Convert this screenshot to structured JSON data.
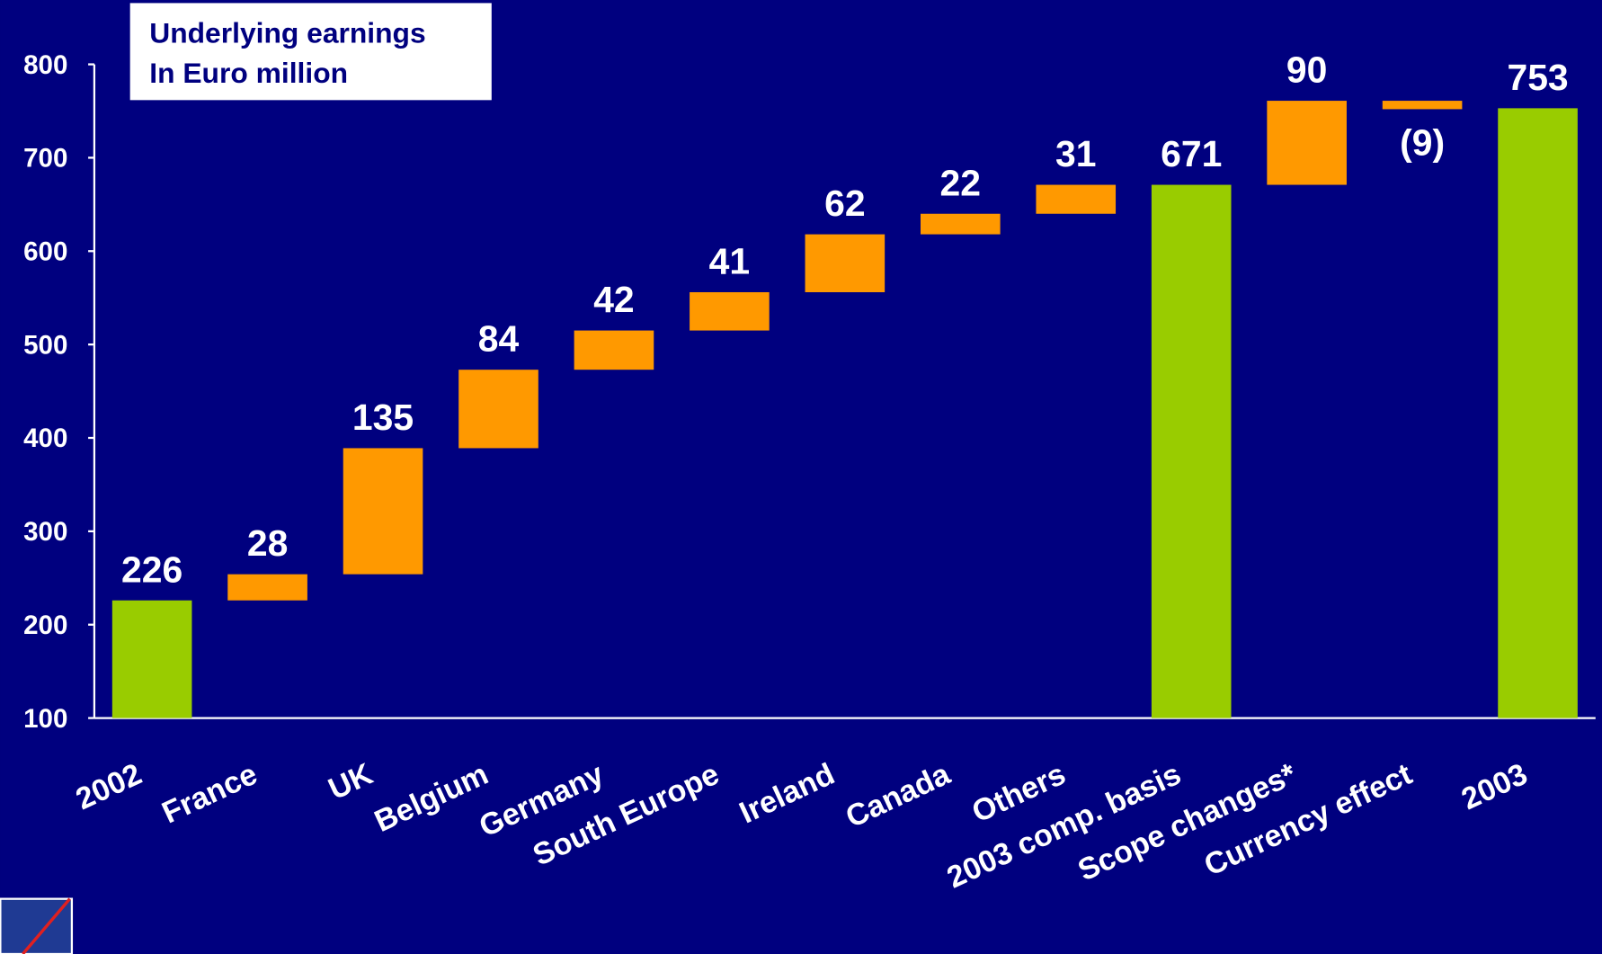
{
  "chart_data": {
    "type": "waterfall",
    "title": "Underlying earnings",
    "subtitle": "In Euro million",
    "categories": [
      "2002",
      "France",
      "UK",
      "Belgium",
      "Germany",
      "South Europe",
      "Ireland",
      "Canada",
      "Others",
      "2003 comp. basis",
      "Scope changes*",
      "Currency effect",
      "2003"
    ],
    "values": [
      226,
      28,
      135,
      84,
      42,
      41,
      62,
      22,
      31,
      671,
      90,
      -9,
      753
    ],
    "value_labels": [
      "226",
      "28",
      "135",
      "84",
      "42",
      "41",
      "62",
      "22",
      "31",
      "671",
      "90",
      "(9)",
      "753"
    ],
    "measure": [
      "absolute",
      "relative",
      "relative",
      "relative",
      "relative",
      "relative",
      "relative",
      "relative",
      "relative",
      "absolute",
      "relative",
      "relative",
      "absolute"
    ],
    "total_color": "#99cc00",
    "delta_color": "#ff9900",
    "ylim": [
      100,
      800
    ],
    "yticks": [
      100,
      200,
      300,
      400,
      500,
      600,
      700,
      800
    ],
    "grid": false
  }
}
